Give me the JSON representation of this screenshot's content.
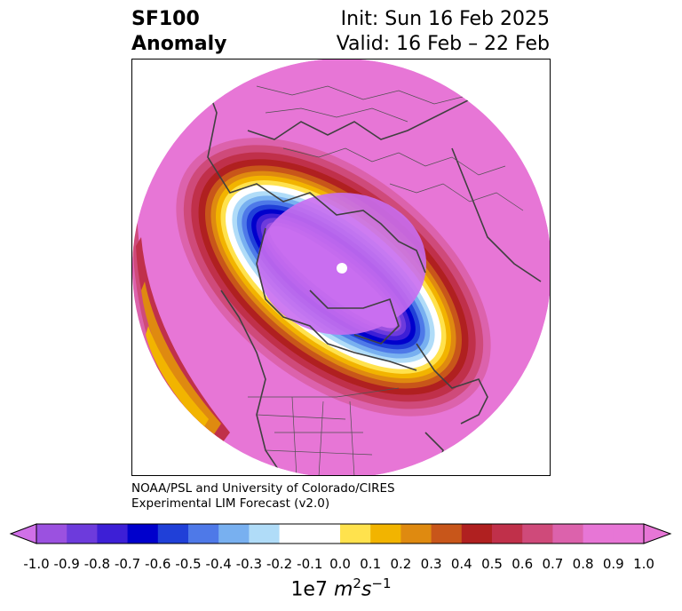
{
  "title": {
    "left_line1": "SF100",
    "left_line2": "Anomaly",
    "right_line1": "Init: Sun 16 Feb 2025",
    "right_line2": "Valid: 16 Feb – 22 Feb"
  },
  "credit": {
    "line1": "NOAA/PSL and University of Colorado/CIRES",
    "line2": "Experimental LIM Forecast (v2.0)"
  },
  "colorbar": {
    "ticks": [
      "-1.0",
      "-0.9",
      "-0.8",
      "-0.7",
      "-0.6",
      "-0.5",
      "-0.4",
      "-0.3",
      "-0.2",
      "-0.1",
      "0.0",
      "0.1",
      "0.2",
      "0.3",
      "0.4",
      "0.5",
      "0.6",
      "0.7",
      "0.8",
      "0.9",
      "1.0"
    ],
    "colors": [
      "#9b51e0",
      "#6d3bdc",
      "#3d1fd6",
      "#0000cc",
      "#2040d8",
      "#4e79e8",
      "#78b0f0",
      "#b0dcf8",
      "#ffffff",
      "#ffffff",
      "#ffe24d",
      "#f2b400",
      "#df8a10",
      "#c8561a",
      "#b02020",
      "#c0304a",
      "#cf4a7a",
      "#dc62ac",
      "#e776d6"
    ],
    "under_color": "#d070e8",
    "over_color": "#e776d6",
    "units_base": "1e7",
    "units_m": "m",
    "units_m_exp": "2",
    "units_s": "s",
    "units_s_exp": "−1"
  },
  "map": {
    "background_anomaly_color": "#e776d6",
    "center_anomaly_color": "#c96ef0"
  }
}
